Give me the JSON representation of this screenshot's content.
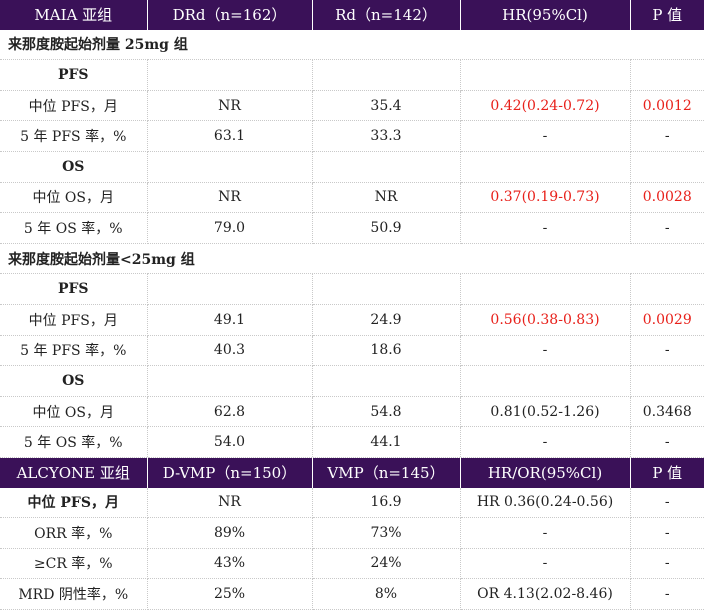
{
  "maia": {
    "header": [
      "MAIA 亚组",
      "DRd（n=162）",
      "Rd（n=142）",
      "HR(95%Cl)",
      "P 值"
    ],
    "group1_title": "来那度胺起始剂量 25mg 组",
    "group2_title": "来那度胺起始剂量<25mg 组",
    "g1": {
      "pfs_label": "PFS",
      "pfs_rows": [
        [
          "中位 PFS，月",
          "NR",
          "35.4",
          "0.42(0.24-0.72)",
          "0.0012"
        ],
        [
          "5 年 PFS 率，%",
          "63.1",
          "33.3",
          "-",
          "-"
        ]
      ],
      "os_label": "OS",
      "os_rows": [
        [
          "中位 OS，月",
          "NR",
          "NR",
          "0.37(0.19-0.73)",
          "0.0028"
        ],
        [
          "5 年 OS 率，%",
          "79.0",
          "50.9",
          "-",
          "-"
        ]
      ]
    },
    "g2": {
      "pfs_label": "PFS",
      "pfs_rows": [
        [
          "中位 PFS，月",
          "49.1",
          "24.9",
          "0.56(0.38-0.83)",
          "0.0029"
        ],
        [
          "5 年 PFS 率，%",
          "40.3",
          "18.6",
          "-",
          "-"
        ]
      ],
      "os_label": "OS",
      "os_rows": [
        [
          "中位 OS，月",
          "62.8",
          "54.8",
          "0.81(0.52-1.26)",
          "0.3468"
        ],
        [
          "5 年 OS 率，%",
          "54.0",
          "44.1",
          "-",
          "-"
        ]
      ]
    }
  },
  "alcyone": {
    "header": [
      "ALCYONE 亚组",
      "D-VMP（n=150）",
      "VMP（n=145）",
      "HR/OR(95%Cl)",
      "P 值"
    ],
    "rows": [
      [
        "中位 PFS，月",
        "NR",
        "16.9",
        "HR 0.36(0.24-0.56)",
        "-"
      ],
      [
        "ORR 率，%",
        "89%",
        "73%",
        "-",
        "-"
      ],
      [
        "≥CR 率，%",
        "43%",
        "24%",
        "-",
        "-"
      ],
      [
        "MRD 阴性率，%",
        "25%",
        "8%",
        "OR 4.13(2.02-8.46)",
        "-"
      ]
    ]
  },
  "colors": {
    "header_bg": "#3a1158",
    "significant": "#e8201a"
  }
}
